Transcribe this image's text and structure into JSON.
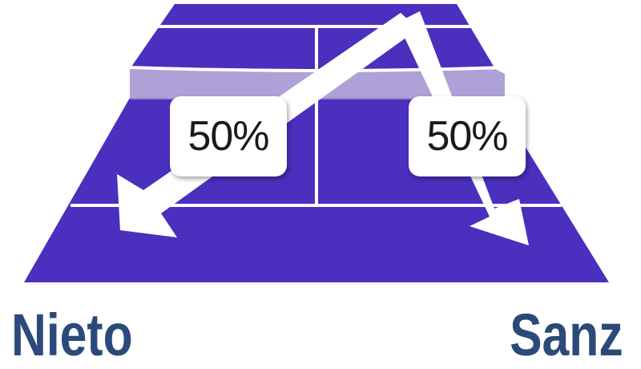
{
  "court": {
    "court_color": "#4b2fbe",
    "line_color": "#ffffff",
    "net_color": "#a090d0"
  },
  "shots": [
    {
      "percent_label": "50%",
      "direction": "left"
    },
    {
      "percent_label": "50%",
      "direction": "right"
    }
  ],
  "players": {
    "left": "Nieto",
    "right": "Sanz",
    "name_color": "#2b4a7a"
  }
}
